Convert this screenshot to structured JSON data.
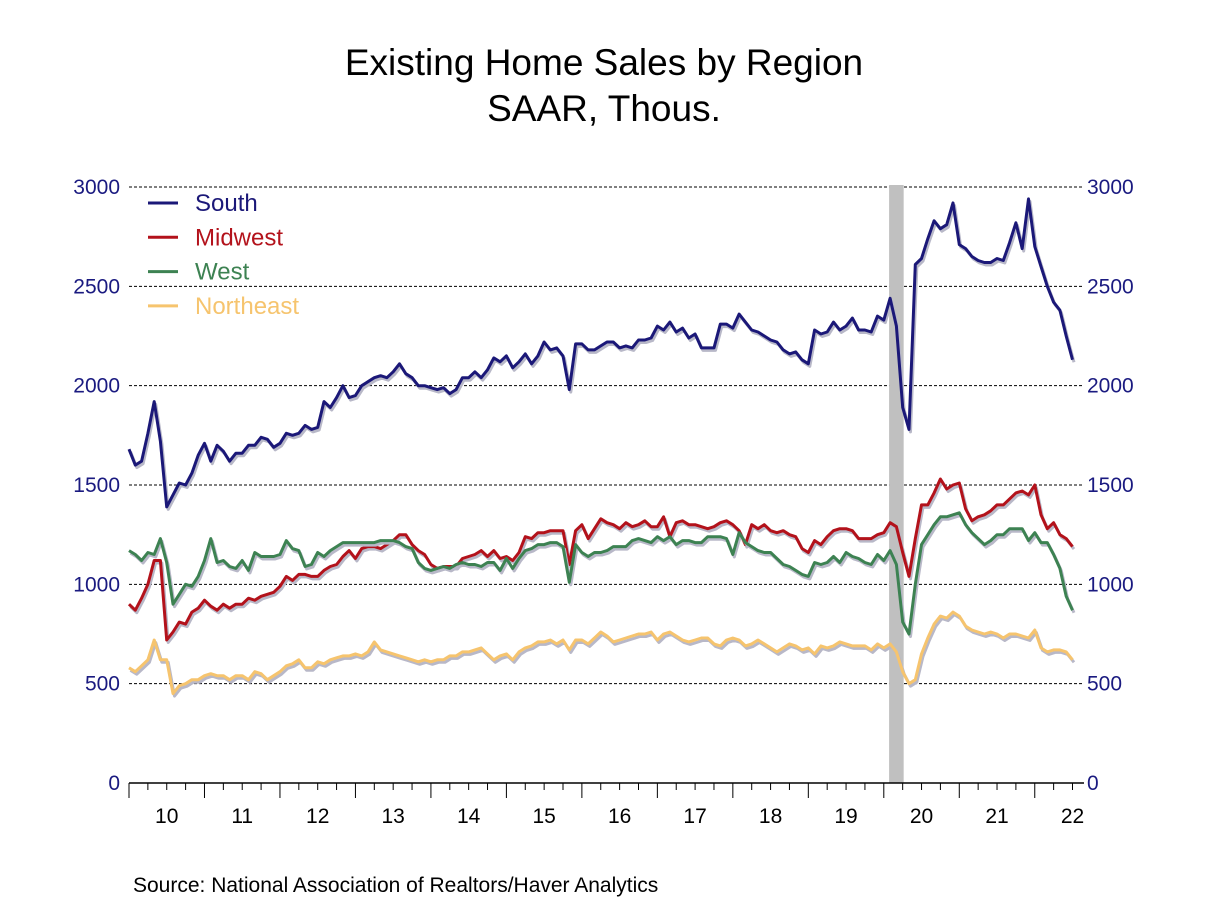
{
  "title": "Existing Home Sales by Region",
  "subtitle": "SAAR, Thous.",
  "source": "Source:  National Association of Realtors/Haver Analytics",
  "chart_data": {
    "type": "line",
    "title": "Existing Home Sales by Region",
    "subtitle": "SAAR, Thous.",
    "xlabel": "",
    "ylabel": "",
    "ylim": [
      0,
      3000
    ],
    "yticks": [
      "0",
      "500",
      "1000",
      "1500",
      "2000",
      "2500",
      "3000"
    ],
    "xtick_labels": [
      "10",
      "11",
      "12",
      "13",
      "14",
      "15",
      "16",
      "17",
      "18",
      "19",
      "20",
      "21",
      "22"
    ],
    "grid": "horizontal dashed",
    "legend_position": "top-left",
    "recession_shading": [
      "2020-02",
      "2020-04"
    ],
    "colors": {
      "South": "#1b1878",
      "Midwest": "#b3121b",
      "West": "#3d8252",
      "Northeast": "#f6c46e",
      "axis_text": "#1a1a80",
      "shading": "#c0c0c0"
    },
    "x": [
      "2010-01",
      "2010-02",
      "2010-03",
      "2010-04",
      "2010-05",
      "2010-06",
      "2010-07",
      "2010-08",
      "2010-09",
      "2010-10",
      "2010-11",
      "2010-12",
      "2011-01",
      "2011-02",
      "2011-03",
      "2011-04",
      "2011-05",
      "2011-06",
      "2011-07",
      "2011-08",
      "2011-09",
      "2011-10",
      "2011-11",
      "2011-12",
      "2012-01",
      "2012-02",
      "2012-03",
      "2012-04",
      "2012-05",
      "2012-06",
      "2012-07",
      "2012-08",
      "2012-09",
      "2012-10",
      "2012-11",
      "2012-12",
      "2013-01",
      "2013-02",
      "2013-03",
      "2013-04",
      "2013-05",
      "2013-06",
      "2013-07",
      "2013-08",
      "2013-09",
      "2013-10",
      "2013-11",
      "2013-12",
      "2014-01",
      "2014-02",
      "2014-03",
      "2014-04",
      "2014-05",
      "2014-06",
      "2014-07",
      "2014-08",
      "2014-09",
      "2014-10",
      "2014-11",
      "2014-12",
      "2015-01",
      "2015-02",
      "2015-03",
      "2015-04",
      "2015-05",
      "2015-06",
      "2015-07",
      "2015-08",
      "2015-09",
      "2015-10",
      "2015-11",
      "2015-12",
      "2016-01",
      "2016-02",
      "2016-03",
      "2016-04",
      "2016-05",
      "2016-06",
      "2016-07",
      "2016-08",
      "2016-09",
      "2016-10",
      "2016-11",
      "2016-12",
      "2017-01",
      "2017-02",
      "2017-03",
      "2017-04",
      "2017-05",
      "2017-06",
      "2017-07",
      "2017-08",
      "2017-09",
      "2017-10",
      "2017-11",
      "2017-12",
      "2018-01",
      "2018-02",
      "2018-03",
      "2018-04",
      "2018-05",
      "2018-06",
      "2018-07",
      "2018-08",
      "2018-09",
      "2018-10",
      "2018-11",
      "2018-12",
      "2019-01",
      "2019-02",
      "2019-03",
      "2019-04",
      "2019-05",
      "2019-06",
      "2019-07",
      "2019-08",
      "2019-09",
      "2019-10",
      "2019-11",
      "2019-12",
      "2020-01",
      "2020-02",
      "2020-03",
      "2020-04",
      "2020-05",
      "2020-06",
      "2020-07",
      "2020-08",
      "2020-09",
      "2020-10",
      "2020-11",
      "2020-12",
      "2021-01",
      "2021-02",
      "2021-03",
      "2021-04",
      "2021-05",
      "2021-06",
      "2021-07",
      "2021-08",
      "2021-09",
      "2021-10",
      "2021-11",
      "2021-12",
      "2022-01",
      "2022-02",
      "2022-03",
      "2022-04",
      "2022-05",
      "2022-06",
      "2022-07"
    ],
    "series": [
      {
        "name": "South",
        "values": [
          1680,
          1600,
          1620,
          1760,
          1920,
          1720,
          1390,
          1450,
          1510,
          1500,
          1560,
          1650,
          1710,
          1620,
          1700,
          1670,
          1620,
          1660,
          1660,
          1700,
          1700,
          1740,
          1730,
          1690,
          1710,
          1760,
          1750,
          1760,
          1800,
          1780,
          1790,
          1920,
          1890,
          1940,
          2000,
          1940,
          1950,
          2000,
          2020,
          2040,
          2050,
          2040,
          2070,
          2110,
          2060,
          2040,
          2000,
          2000,
          1990,
          1980,
          1990,
          1960,
          1980,
          2040,
          2040,
          2070,
          2040,
          2080,
          2140,
          2120,
          2150,
          2090,
          2120,
          2160,
          2110,
          2150,
          2220,
          2180,
          2190,
          2150,
          1980,
          2210,
          2210,
          2180,
          2180,
          2200,
          2220,
          2220,
          2190,
          2200,
          2190,
          2230,
          2230,
          2240,
          2300,
          2280,
          2320,
          2270,
          2290,
          2240,
          2260,
          2190,
          2190,
          2190,
          2310,
          2310,
          2290,
          2360,
          2320,
          2280,
          2270,
          2250,
          2230,
          2220,
          2180,
          2160,
          2170,
          2130,
          2110,
          2280,
          2260,
          2270,
          2320,
          2280,
          2300,
          2340,
          2280,
          2280,
          2270,
          2350,
          2330,
          2440,
          2300,
          1890,
          1780,
          2610,
          2640,
          2740,
          2830,
          2790,
          2810,
          2920,
          2710,
          2690,
          2650,
          2630,
          2620,
          2620,
          2640,
          2630,
          2720,
          2820,
          2690,
          2940,
          2700,
          2600,
          2500,
          2420,
          2380,
          2250,
          2130
        ]
      },
      {
        "name": "Midwest",
        "values": [
          900,
          870,
          930,
          1000,
          1120,
          1120,
          720,
          760,
          810,
          800,
          860,
          880,
          920,
          890,
          870,
          900,
          880,
          900,
          900,
          930,
          920,
          940,
          950,
          960,
          990,
          1040,
          1020,
          1050,
          1050,
          1040,
          1040,
          1070,
          1090,
          1100,
          1140,
          1170,
          1130,
          1180,
          1190,
          1190,
          1180,
          1200,
          1220,
          1250,
          1250,
          1200,
          1170,
          1150,
          1100,
          1080,
          1090,
          1090,
          1090,
          1130,
          1140,
          1150,
          1170,
          1140,
          1170,
          1130,
          1140,
          1120,
          1160,
          1240,
          1230,
          1260,
          1260,
          1270,
          1270,
          1270,
          1100,
          1270,
          1300,
          1230,
          1280,
          1330,
          1310,
          1300,
          1280,
          1310,
          1290,
          1300,
          1320,
          1290,
          1290,
          1340,
          1240,
          1310,
          1320,
          1300,
          1300,
          1290,
          1280,
          1290,
          1310,
          1320,
          1300,
          1270,
          1200,
          1300,
          1280,
          1300,
          1270,
          1260,
          1270,
          1250,
          1240,
          1180,
          1160,
          1220,
          1200,
          1240,
          1270,
          1280,
          1280,
          1270,
          1230,
          1230,
          1230,
          1250,
          1260,
          1310,
          1290,
          1160,
          1040,
          1230,
          1400,
          1400,
          1460,
          1530,
          1480,
          1500,
          1510,
          1380,
          1320,
          1340,
          1350,
          1370,
          1400,
          1400,
          1430,
          1460,
          1470,
          1450,
          1500,
          1350,
          1280,
          1310,
          1250,
          1230,
          1190
        ]
      },
      {
        "name": "West",
        "values": [
          1170,
          1150,
          1120,
          1160,
          1150,
          1230,
          1110,
          900,
          950,
          1000,
          990,
          1040,
          1120,
          1230,
          1110,
          1120,
          1090,
          1080,
          1120,
          1070,
          1160,
          1140,
          1140,
          1140,
          1150,
          1220,
          1180,
          1170,
          1090,
          1100,
          1160,
          1140,
          1170,
          1190,
          1210,
          1210,
          1210,
          1210,
          1210,
          1210,
          1220,
          1220,
          1220,
          1210,
          1190,
          1180,
          1110,
          1080,
          1070,
          1080,
          1090,
          1080,
          1100,
          1110,
          1100,
          1100,
          1090,
          1110,
          1110,
          1070,
          1130,
          1080,
          1130,
          1170,
          1180,
          1200,
          1200,
          1210,
          1210,
          1190,
          1010,
          1200,
          1160,
          1140,
          1160,
          1160,
          1170,
          1190,
          1190,
          1190,
          1220,
          1230,
          1220,
          1210,
          1240,
          1220,
          1240,
          1200,
          1220,
          1220,
          1210,
          1210,
          1240,
          1240,
          1240,
          1230,
          1150,
          1260,
          1210,
          1190,
          1170,
          1160,
          1160,
          1130,
          1100,
          1090,
          1070,
          1050,
          1040,
          1110,
          1100,
          1110,
          1140,
          1110,
          1160,
          1140,
          1130,
          1110,
          1100,
          1150,
          1120,
          1170,
          1100,
          810,
          750,
          1000,
          1200,
          1250,
          1300,
          1340,
          1340,
          1350,
          1360,
          1300,
          1260,
          1230,
          1200,
          1220,
          1250,
          1250,
          1280,
          1280,
          1280,
          1220,
          1260,
          1210,
          1210,
          1150,
          1080,
          940,
          870
        ]
      },
      {
        "name": "Northeast",
        "values": [
          580,
          560,
          590,
          620,
          720,
          620,
          620,
          450,
          490,
          500,
          520,
          520,
          540,
          550,
          540,
          540,
          520,
          540,
          540,
          520,
          560,
          550,
          520,
          540,
          560,
          590,
          600,
          620,
          580,
          580,
          610,
          600,
          620,
          630,
          640,
          640,
          650,
          640,
          660,
          710,
          670,
          660,
          650,
          640,
          630,
          620,
          610,
          620,
          610,
          620,
          620,
          640,
          640,
          660,
          660,
          670,
          680,
          650,
          620,
          640,
          650,
          620,
          660,
          680,
          690,
          710,
          710,
          720,
          700,
          720,
          670,
          720,
          720,
          700,
          730,
          760,
          740,
          710,
          720,
          730,
          740,
          750,
          750,
          760,
          720,
          750,
          760,
          740,
          720,
          710,
          720,
          730,
          730,
          700,
          690,
          720,
          730,
          720,
          690,
          700,
          720,
          700,
          680,
          660,
          680,
          700,
          690,
          670,
          680,
          650,
          690,
          680,
          690,
          710,
          700,
          690,
          690,
          690,
          670,
          700,
          680,
          700,
          660,
          560,
          500,
          520,
          650,
          730,
          800,
          840,
          830,
          860,
          840,
          790,
          770,
          760,
          750,
          760,
          750,
          730,
          750,
          750,
          740,
          730,
          770,
          680,
          660,
          670,
          670,
          660,
          620
        ]
      }
    ]
  }
}
